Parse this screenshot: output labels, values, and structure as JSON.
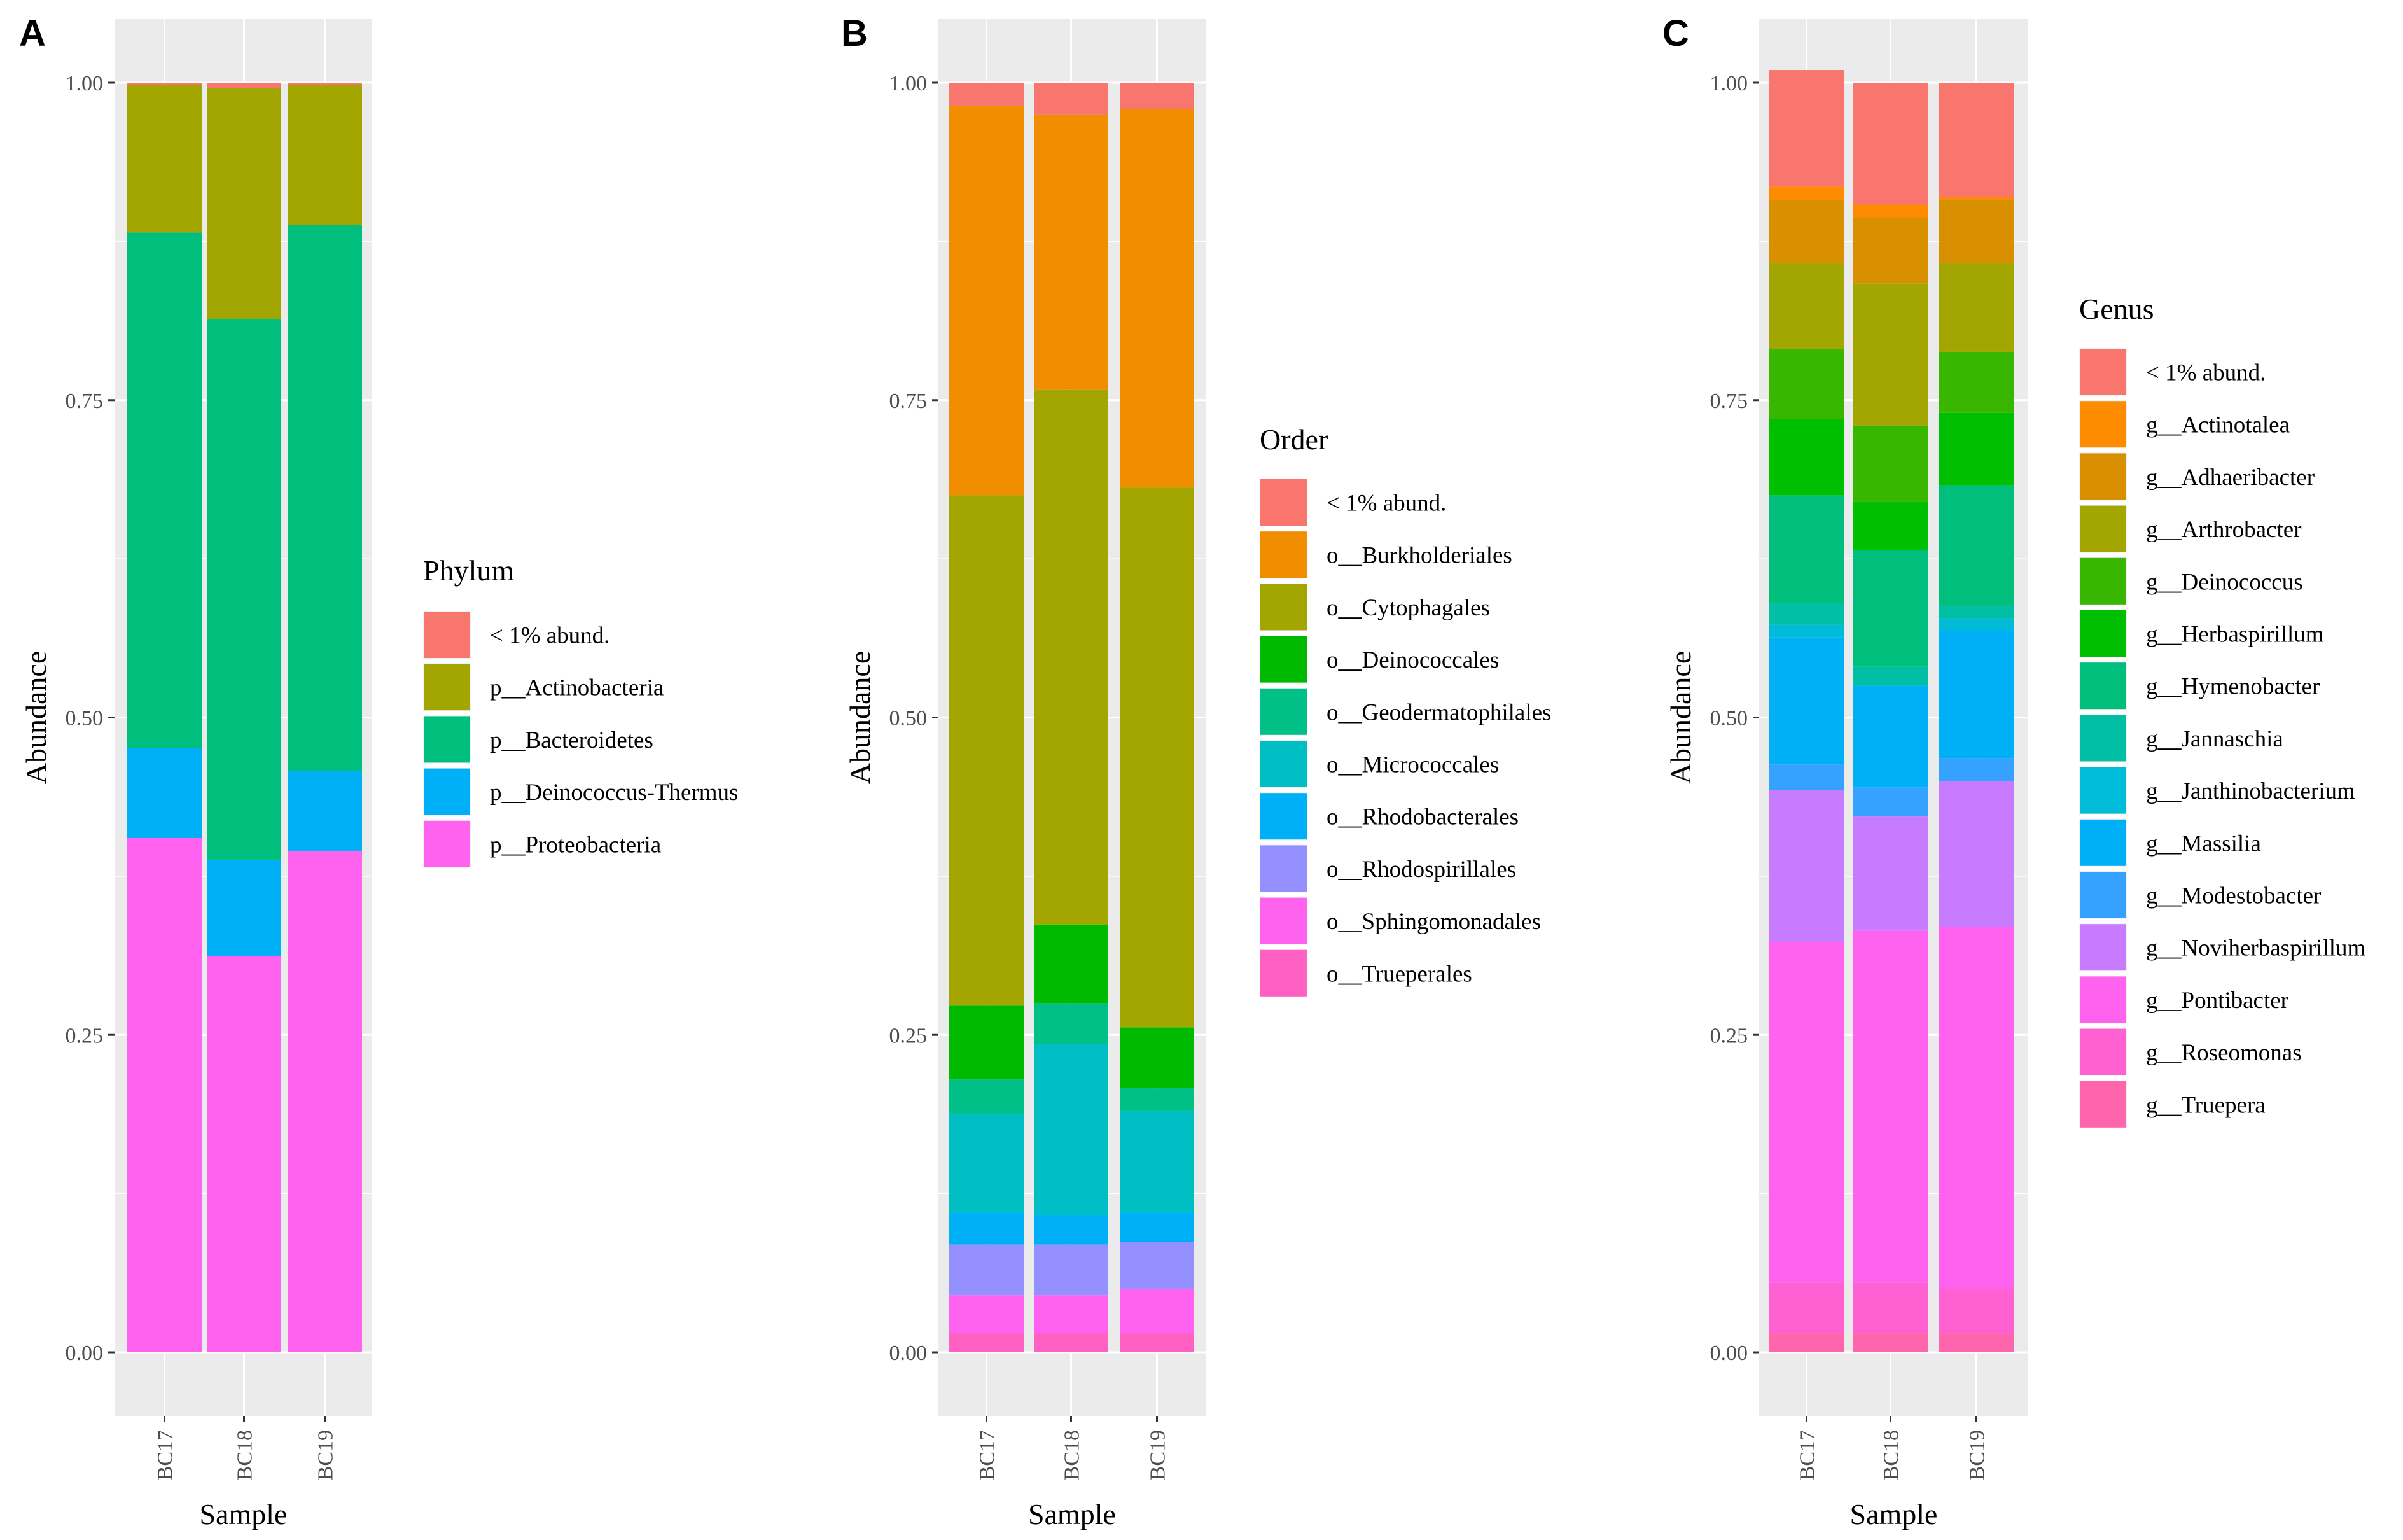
{
  "chart_data": [
    {
      "type": "bar",
      "stacked": true,
      "panel_label": "A",
      "xlabel": "Sample",
      "ylabel": "Abundance",
      "categories": [
        "BC17",
        "BC18",
        "BC19"
      ],
      "ylim": [
        0,
        1
      ],
      "yticks": [
        0,
        0.25,
        0.5,
        0.75,
        1
      ],
      "ytick_labels": [
        "0.00",
        "0.25",
        "0.50",
        "0.75",
        "1.00"
      ],
      "grid": true,
      "legend_position": "right",
      "legend_title": "Phylum",
      "legend_items": [
        "< 1% abund.",
        "p__Actinobacteria",
        "p__Bacteroidetes",
        "p__Deinococcus-Thermus",
        "p__Proteobacteria"
      ],
      "colors": [
        "#F8766D",
        "#A3A500",
        "#00BF7D",
        "#00B0F6",
        "#FF62EF"
      ],
      "series_bottom_to_top": [
        {
          "name": "p__Proteobacteria",
          "color": "#FF62EF",
          "values": [
            0.405,
            0.312,
            0.395
          ]
        },
        {
          "name": "p__Deinococcus-Thermus",
          "color": "#00B0F6",
          "values": [
            0.071,
            0.076,
            0.063
          ]
        },
        {
          "name": "p__Bacteroidetes",
          "color": "#00BF7D",
          "values": [
            0.406,
            0.426,
            0.43
          ]
        },
        {
          "name": "p__Actinobacteria",
          "color": "#A3A500",
          "values": [
            0.116,
            0.182,
            0.11
          ]
        },
        {
          "name": "< 1% abund.",
          "color": "#F8766D",
          "values": [
            0.002,
            0.004,
            0.002
          ]
        }
      ]
    },
    {
      "type": "bar",
      "stacked": true,
      "panel_label": "B",
      "xlabel": "Sample",
      "ylabel": "Abundance",
      "categories": [
        "BC17",
        "BC18",
        "BC19"
      ],
      "ylim": [
        0,
        1
      ],
      "yticks": [
        0,
        0.25,
        0.5,
        0.75,
        1
      ],
      "ytick_labels": [
        "0.00",
        "0.25",
        "0.50",
        "0.75",
        "1.00"
      ],
      "grid": true,
      "legend_position": "right",
      "legend_title": "Order",
      "legend_items": [
        "< 1% abund.",
        "o__Burkholderiales",
        "o__Cytophagales",
        "o__Deinococcales",
        "o__Geodermatophilales",
        "o__Micrococcales",
        "o__Rhodobacterales",
        "o__Rhodospirillales",
        "o__Sphingomonadales",
        "o__Trueperales"
      ],
      "colors": [
        "#F8766D",
        "#F08E00",
        "#A3A500",
        "#00BA00",
        "#00C087",
        "#00BFC4",
        "#00B0F6",
        "#9590FF",
        "#FF62EF",
        "#FF61C3"
      ],
      "series_bottom_to_top": [
        {
          "name": "o__Trueperales",
          "color": "#FF61C3",
          "values": [
            0.015,
            0.015,
            0.015
          ]
        },
        {
          "name": "o__Sphingomonadales",
          "color": "#FF62EF",
          "values": [
            0.03,
            0.03,
            0.035
          ]
        },
        {
          "name": "o__Rhodospirillales",
          "color": "#9590FF",
          "values": [
            0.04,
            0.04,
            0.037
          ]
        },
        {
          "name": "o__Rhodobacterales",
          "color": "#00B0F6",
          "values": [
            0.025,
            0.023,
            0.023
          ]
        },
        {
          "name": "o__Micrococcales",
          "color": "#00BFC4",
          "values": [
            0.078,
            0.135,
            0.08
          ]
        },
        {
          "name": "o__Geodermatophilales",
          "color": "#00C087",
          "values": [
            0.027,
            0.032,
            0.018
          ]
        },
        {
          "name": "o__Deinococcales",
          "color": "#00BA00",
          "values": [
            0.058,
            0.062,
            0.048
          ]
        },
        {
          "name": "o__Cytophagales",
          "color": "#A3A500",
          "values": [
            0.402,
            0.421,
            0.425
          ]
        },
        {
          "name": "o__Burkholderiales",
          "color": "#F08E00",
          "values": [
            0.307,
            0.217,
            0.298
          ]
        },
        {
          "name": "< 1% abund.",
          "color": "#F8766D",
          "values": [
            0.018,
            0.025,
            0.021
          ]
        }
      ]
    },
    {
      "type": "bar",
      "stacked": true,
      "panel_label": "C",
      "xlabel": "Sample",
      "ylabel": "Abundance",
      "categories": [
        "BC17",
        "BC18",
        "BC19"
      ],
      "ylim": [
        0,
        1
      ],
      "yticks": [
        0,
        0.25,
        0.5,
        0.75,
        1
      ],
      "ytick_labels": [
        "0.00",
        "0.25",
        "0.50",
        "0.75",
        "1.00"
      ],
      "grid": true,
      "legend_position": "right",
      "legend_title": "Genus",
      "legend_items": [
        "< 1% abund.",
        "g__Actinotalea",
        "g__Adhaeribacter",
        "g__Arthrobacter",
        "g__Deinococcus",
        "g__Herbaspirillum",
        "g__Hymenobacter",
        "g__Jannaschia",
        "g__Janthinobacterium",
        "g__Massilia",
        "g__Modestobacter",
        "g__Noviherbaspirillum",
        "g__Pontibacter",
        "g__Roseomonas",
        "g__Truepera"
      ],
      "colors": [
        "#F8766D",
        "#FF8C00",
        "#D89000",
        "#A3A500",
        "#39B600",
        "#00BF00",
        "#00BF7D",
        "#00BFA5",
        "#00BCD8",
        "#00B0F6",
        "#35A2FF",
        "#C77CFF",
        "#FF62EF",
        "#FF61D2",
        "#FF65AC"
      ],
      "series_bottom_to_top": [
        {
          "name": "g__Truepera",
          "color": "#FF65AC",
          "values": [
            0.015,
            0.015,
            0.015
          ]
        },
        {
          "name": "g__Roseomonas",
          "color": "#FF61D2",
          "values": [
            0.04,
            0.04,
            0.035
          ]
        },
        {
          "name": "g__Pontibacter",
          "color": "#FF62EF",
          "values": [
            0.268,
            0.277,
            0.285
          ]
        },
        {
          "name": "g__Noviherbaspirillum",
          "color": "#C77CFF",
          "values": [
            0.12,
            0.09,
            0.115
          ]
        },
        {
          "name": "g__Modestobacter",
          "color": "#35A2FF",
          "values": [
            0.02,
            0.023,
            0.018
          ]
        },
        {
          "name": "g__Massilia",
          "color": "#00B0F6",
          "values": [
            0.1,
            0.08,
            0.1
          ]
        },
        {
          "name": "g__Janthinobacterium",
          "color": "#00BCD8",
          "values": [
            0.01,
            0.0,
            0.01
          ]
        },
        {
          "name": "g__Jannaschia",
          "color": "#00BFA5",
          "values": [
            0.017,
            0.015,
            0.01
          ]
        },
        {
          "name": "g__Hymenobacter",
          "color": "#00BF7D",
          "values": [
            0.085,
            0.092,
            0.095
          ]
        },
        {
          "name": "g__Herbaspirillum",
          "color": "#00BF00",
          "values": [
            0.06,
            0.038,
            0.057
          ]
        },
        {
          "name": "g__Deinococcus",
          "color": "#39B600",
          "values": [
            0.055,
            0.06,
            0.048
          ]
        },
        {
          "name": "g__Arthrobacter",
          "color": "#A3A500",
          "values": [
            0.068,
            0.112,
            0.07
          ]
        },
        {
          "name": "g__Adhaeribacter",
          "color": "#D89000",
          "values": [
            0.05,
            0.052,
            0.05
          ]
        },
        {
          "name": "g__Actinotalea",
          "color": "#FF8C00",
          "values": [
            0.01,
            0.01,
            0.002
          ]
        },
        {
          "name": "< 1% abund.",
          "color": "#F8766D",
          "values": [
            0.092,
            0.096,
            0.09
          ]
        }
      ]
    }
  ]
}
